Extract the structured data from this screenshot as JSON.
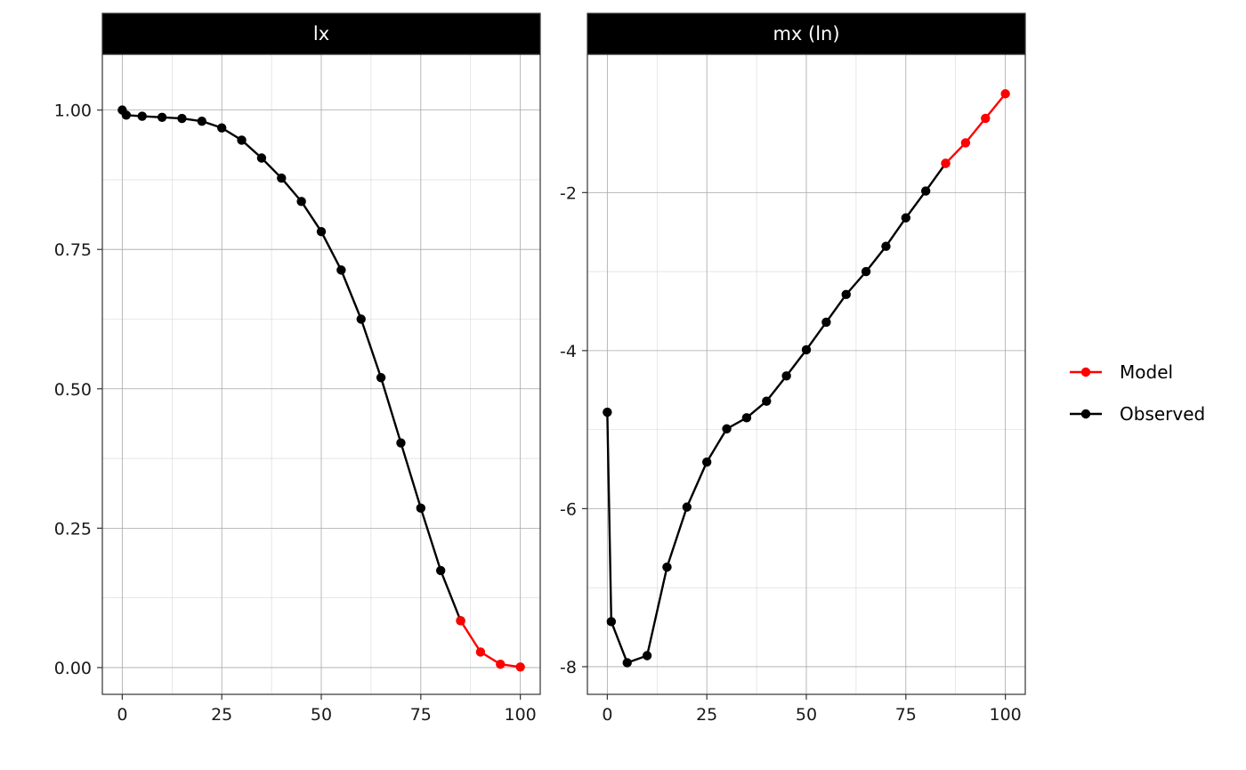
{
  "chart_data": {
    "type": "line",
    "legend": {
      "position": "right",
      "entries": [
        {
          "label": "Model",
          "color": "#ff0000"
        },
        {
          "label": "Observed",
          "color": "#000000"
        }
      ]
    },
    "colors": {
      "model": "#ff0000",
      "observed": "#000000",
      "strip": "#000000"
    },
    "grid": true,
    "panels": [
      {
        "title": "lx",
        "xlim": [
          -5,
          105
        ],
        "ylim": [
          -0.048,
          1.1
        ],
        "xticks": [
          0,
          25,
          50,
          75,
          100
        ],
        "xtick_labels": [
          "0",
          "25",
          "50",
          "75",
          "100"
        ],
        "yticks": [
          0,
          0.25,
          0.5,
          0.75,
          1.0
        ],
        "ytick_labels": [
          "0.00",
          "0.25",
          "0.50",
          "0.75",
          "1.00"
        ],
        "series": [
          {
            "name": "Observed",
            "color": "#000000",
            "x": [
              0,
              1,
              5,
              10,
              15,
              20,
              25,
              30,
              35,
              40,
              45,
              50,
              55,
              60,
              65,
              70,
              75,
              80,
              85
            ],
            "y": [
              1.0,
              0.991,
              0.989,
              0.987,
              0.985,
              0.98,
              0.968,
              0.946,
              0.914,
              0.878,
              0.836,
              0.782,
              0.713,
              0.625,
              0.52,
              0.403,
              0.286,
              0.174,
              0.084
            ]
          },
          {
            "name": "Model",
            "color": "#ff0000",
            "x": [
              85,
              90,
              95,
              100
            ],
            "y": [
              0.084,
              0.028,
              0.006,
              0.001
            ]
          }
        ]
      },
      {
        "title": "mx (ln)",
        "xlim": [
          -5,
          105
        ],
        "ylim": [
          -8.35,
          -0.25
        ],
        "xticks": [
          0,
          25,
          50,
          75,
          100
        ],
        "xtick_labels": [
          "0",
          "25",
          "50",
          "75",
          "100"
        ],
        "yticks": [
          -8,
          -6,
          -4,
          -2
        ],
        "ytick_labels": [
          "-8",
          "-6",
          "-4",
          "-2"
        ],
        "series": [
          {
            "name": "Observed",
            "color": "#000000",
            "x": [
              0,
              1,
              5,
              10,
              15,
              20,
              25,
              30,
              35,
              40,
              45,
              50,
              55,
              60,
              65,
              70,
              75,
              80,
              85
            ],
            "y": [
              -4.78,
              -7.43,
              -7.95,
              -7.86,
              -6.74,
              -5.98,
              -5.41,
              -4.99,
              -4.85,
              -4.64,
              -4.32,
              -3.99,
              -3.64,
              -3.29,
              -3.0,
              -2.68,
              -2.32,
              -1.98,
              -1.63
            ]
          },
          {
            "name": "Model",
            "color": "#ff0000",
            "x": [
              85,
              90,
              95,
              100
            ],
            "y": [
              -1.63,
              -1.37,
              -1.06,
              -0.75
            ]
          }
        ]
      }
    ]
  }
}
